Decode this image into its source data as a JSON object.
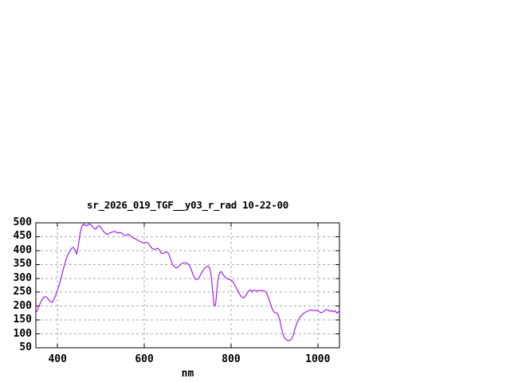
{
  "page": {
    "background_color": "#ffffff"
  },
  "chart_data": {
    "type": "line",
    "title": "sr_2026_019_TGF__y03_r_rad 10-22-00",
    "xlabel": "nm",
    "ylabel": "",
    "x_range": [
      350,
      1050
    ],
    "y_range": [
      50,
      500
    ],
    "x_ticks": [
      400,
      600,
      800,
      1000
    ],
    "y_ticks": [
      50,
      100,
      150,
      200,
      250,
      300,
      350,
      400,
      450,
      500
    ],
    "grid": {
      "show": true,
      "color": "#a9a9a9",
      "dash": "3,3"
    },
    "legend": "none",
    "frame_color": "#000000",
    "line_color": "#a020f0",
    "series": [
      {
        "name": "sr_2026_019_TGF__y03_r_rad",
        "points": [
          [
            350,
            185
          ],
          [
            352,
            180
          ],
          [
            356,
            196
          ],
          [
            360,
            210
          ],
          [
            364,
            222
          ],
          [
            368,
            232
          ],
          [
            372,
            235
          ],
          [
            376,
            230
          ],
          [
            380,
            222
          ],
          [
            384,
            216
          ],
          [
            388,
            214
          ],
          [
            392,
            226
          ],
          [
            396,
            240
          ],
          [
            400,
            258
          ],
          [
            404,
            278
          ],
          [
            408,
            300
          ],
          [
            412,
            325
          ],
          [
            416,
            348
          ],
          [
            420,
            370
          ],
          [
            424,
            386
          ],
          [
            428,
            398
          ],
          [
            432,
            407
          ],
          [
            436,
            412
          ],
          [
            440,
            404
          ],
          [
            444,
            387
          ],
          [
            448,
            418
          ],
          [
            452,
            462
          ],
          [
            456,
            488
          ],
          [
            460,
            496
          ],
          [
            464,
            491
          ],
          [
            468,
            489
          ],
          [
            472,
            496
          ],
          [
            476,
            494
          ],
          [
            480,
            487
          ],
          [
            484,
            480
          ],
          [
            488,
            477
          ],
          [
            492,
            486
          ],
          [
            496,
            490
          ],
          [
            500,
            482
          ],
          [
            504,
            474
          ],
          [
            508,
            466
          ],
          [
            512,
            460
          ],
          [
            516,
            458
          ],
          [
            520,
            463
          ],
          [
            524,
            466
          ],
          [
            528,
            468
          ],
          [
            532,
            469
          ],
          [
            536,
            466
          ],
          [
            540,
            463
          ],
          [
            544,
            466
          ],
          [
            548,
            463
          ],
          [
            552,
            457
          ],
          [
            556,
            454
          ],
          [
            560,
            457
          ],
          [
            564,
            459
          ],
          [
            568,
            453
          ],
          [
            572,
            449
          ],
          [
            576,
            445
          ],
          [
            580,
            442
          ],
          [
            584,
            438
          ],
          [
            588,
            434
          ],
          [
            592,
            431
          ],
          [
            596,
            429
          ],
          [
            600,
            428
          ],
          [
            604,
            430
          ],
          [
            608,
            428
          ],
          [
            612,
            420
          ],
          [
            616,
            411
          ],
          [
            620,
            406
          ],
          [
            624,
            404
          ],
          [
            628,
            407
          ],
          [
            632,
            407
          ],
          [
            636,
            400
          ],
          [
            640,
            390
          ],
          [
            644,
            390
          ],
          [
            648,
            394
          ],
          [
            652,
            394
          ],
          [
            656,
            390
          ],
          [
            660,
            372
          ],
          [
            664,
            354
          ],
          [
            668,
            344
          ],
          [
            672,
            339
          ],
          [
            676,
            338
          ],
          [
            680,
            344
          ],
          [
            684,
            351
          ],
          [
            688,
            354
          ],
          [
            692,
            356
          ],
          [
            696,
            356
          ],
          [
            700,
            353
          ],
          [
            704,
            347
          ],
          [
            708,
            333
          ],
          [
            712,
            315
          ],
          [
            716,
            302
          ],
          [
            720,
            295
          ],
          [
            724,
            298
          ],
          [
            728,
            308
          ],
          [
            732,
            320
          ],
          [
            736,
            330
          ],
          [
            740,
            338
          ],
          [
            744,
            343
          ],
          [
            748,
            344
          ],
          [
            752,
            332
          ],
          [
            755,
            300
          ],
          [
            758,
            248
          ],
          [
            761,
            203
          ],
          [
            763,
            200
          ],
          [
            765,
            215
          ],
          [
            768,
            268
          ],
          [
            771,
            305
          ],
          [
            774,
            320
          ],
          [
            777,
            325
          ],
          [
            780,
            318
          ],
          [
            784,
            309
          ],
          [
            788,
            302
          ],
          [
            792,
            298
          ],
          [
            796,
            296
          ],
          [
            800,
            294
          ],
          [
            804,
            289
          ],
          [
            808,
            278
          ],
          [
            812,
            266
          ],
          [
            816,
            254
          ],
          [
            820,
            243
          ],
          [
            824,
            234
          ],
          [
            828,
            230
          ],
          [
            832,
            233
          ],
          [
            836,
            244
          ],
          [
            840,
            253
          ],
          [
            844,
            259
          ],
          [
            848,
            252
          ],
          [
            852,
            258
          ],
          [
            856,
            256
          ],
          [
            860,
            254
          ],
          [
            864,
            256
          ],
          [
            868,
            257
          ],
          [
            872,
            256
          ],
          [
            876,
            255
          ],
          [
            880,
            252
          ],
          [
            884,
            240
          ],
          [
            888,
            222
          ],
          [
            892,
            203
          ],
          [
            896,
            186
          ],
          [
            900,
            177
          ],
          [
            904,
            176
          ],
          [
            908,
            171
          ],
          [
            912,
            152
          ],
          [
            916,
            122
          ],
          [
            920,
            98
          ],
          [
            924,
            84
          ],
          [
            928,
            78
          ],
          [
            932,
            76
          ],
          [
            936,
            77
          ],
          [
            940,
            82
          ],
          [
            944,
            98
          ],
          [
            948,
            122
          ],
          [
            952,
            140
          ],
          [
            956,
            153
          ],
          [
            960,
            163
          ],
          [
            964,
            170
          ],
          [
            968,
            174
          ],
          [
            972,
            178
          ],
          [
            976,
            182
          ],
          [
            980,
            184
          ],
          [
            984,
            186
          ],
          [
            988,
            185
          ],
          [
            992,
            184
          ],
          [
            996,
            184
          ],
          [
            1000,
            183
          ],
          [
            1004,
            179
          ],
          [
            1008,
            176
          ],
          [
            1012,
            179
          ],
          [
            1016,
            184
          ],
          [
            1020,
            188
          ],
          [
            1024,
            186
          ],
          [
            1028,
            181
          ],
          [
            1032,
            184
          ],
          [
            1036,
            179
          ],
          [
            1040,
            183
          ],
          [
            1044,
            175
          ],
          [
            1048,
            180
          ],
          [
            1050,
            174
          ]
        ]
      }
    ]
  }
}
